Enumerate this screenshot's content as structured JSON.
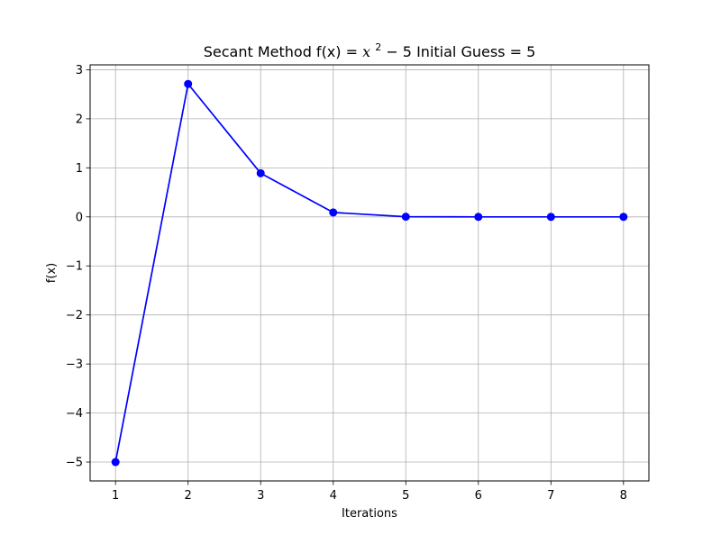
{
  "chart_data": {
    "type": "line",
    "title": {
      "prefix": "Secant Method f(x) = ",
      "math_var": "x",
      "math_exp": "2",
      "math_rest": " − 5",
      "suffix": " Initial Guess = 5"
    },
    "xlabel": "Iterations",
    "ylabel": "f(x)",
    "xlim": [
      0.65,
      8.35
    ],
    "ylim": [
      -5.385,
      3.1
    ],
    "xticks": [
      1,
      2,
      3,
      4,
      5,
      6,
      7,
      8
    ],
    "yticks": [
      -5,
      -4,
      -3,
      -2,
      -1,
      0,
      1,
      2,
      3
    ],
    "xtick_labels": [
      "1",
      "2",
      "3",
      "4",
      "5",
      "6",
      "7",
      "8"
    ],
    "ytick_labels": [
      "−5",
      "−4",
      "−3",
      "−2",
      "−1",
      "0",
      "1",
      "2",
      "3"
    ],
    "grid": true,
    "series": [
      {
        "x": [
          1,
          2,
          3,
          4,
          5,
          6,
          7,
          8
        ],
        "values": [
          -5.0,
          2.71,
          0.89,
          0.09,
          0.003,
          0.0,
          0.0,
          0.0
        ],
        "color": "#0000ff",
        "marker": "circle"
      }
    ]
  }
}
